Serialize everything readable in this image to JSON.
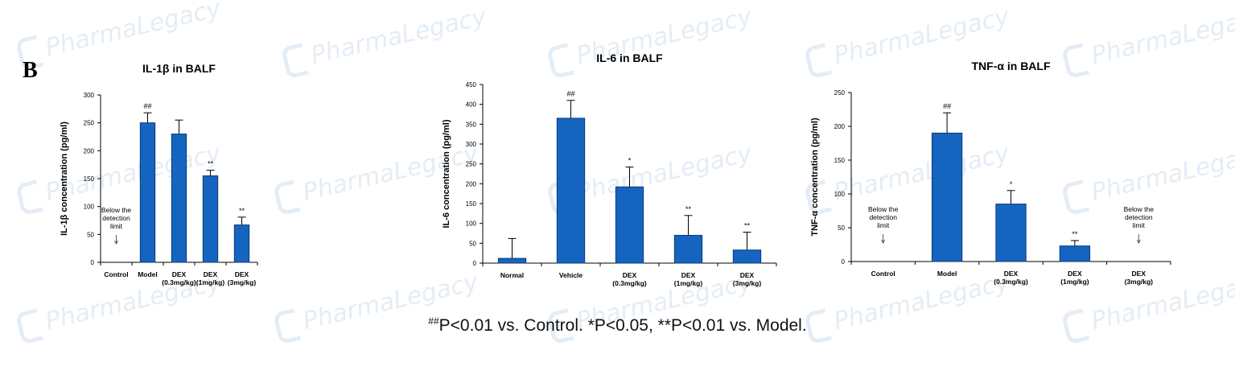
{
  "panel_label": "B",
  "watermark": "PharmaLegacy",
  "footnote": {
    "sup": "##",
    "text": "P<0.01 vs. Control.  *P<0.05, **P<0.01 vs. Model."
  },
  "colors": {
    "bar": "#1565c0",
    "bar_stroke": "#0b3a7a",
    "axis": "#000000"
  },
  "chart_data": [
    {
      "type": "bar",
      "title": "IL-1β in BALF",
      "ylabel": "IL-1β concentration (pg/ml)",
      "categories": [
        [
          "Control"
        ],
        [
          "Model"
        ],
        [
          "DEX",
          "(0.3mg/kg)"
        ],
        [
          "DEX",
          "(1mg/kg)"
        ],
        [
          "DEX",
          "(3mg/kg)"
        ]
      ],
      "values": [
        null,
        250,
        230,
        155,
        67
      ],
      "errors": [
        null,
        18,
        25,
        10,
        14
      ],
      "marks": [
        "",
        "##",
        "",
        "**",
        "**"
      ],
      "annotations": [
        {
          "index": 0,
          "lines": [
            "Below the",
            "detection",
            "limit"
          ]
        }
      ],
      "ylim": [
        0,
        300
      ],
      "yticks": [
        0,
        50,
        100,
        150,
        200,
        250,
        300
      ]
    },
    {
      "type": "bar",
      "title": "IL-6 in BALF",
      "ylabel": "IL-6 concentration (pg/ml)",
      "categories": [
        [
          "Normal"
        ],
        [
          "Vehicle"
        ],
        [
          "DEX",
          "(0.3mg/kg)"
        ],
        [
          "DEX",
          "(1mg/kg)"
        ],
        [
          "DEX",
          "(3mg/kg)"
        ]
      ],
      "values": [
        12,
        365,
        192,
        70,
        33
      ],
      "errors": [
        50,
        45,
        50,
        50,
        45
      ],
      "marks": [
        "",
        "##",
        "*",
        "**",
        "**"
      ],
      "annotations": [],
      "ylim": [
        0,
        450
      ],
      "yticks": [
        0,
        50,
        100,
        150,
        200,
        250,
        300,
        350,
        400,
        450
      ]
    },
    {
      "type": "bar",
      "title": "TNF-α in BALF",
      "ylabel": "TNF-α concentration (pg/ml)",
      "categories": [
        [
          "Control"
        ],
        [
          "Model"
        ],
        [
          "DEX",
          "(0.3mg/kg)"
        ],
        [
          "DEX",
          "(1mg/kg)"
        ],
        [
          "DEX",
          "(3mg/kg)"
        ]
      ],
      "values": [
        null,
        190,
        85,
        23,
        null
      ],
      "errors": [
        null,
        30,
        20,
        8,
        null
      ],
      "marks": [
        "",
        "##",
        "*",
        "**",
        ""
      ],
      "annotations": [
        {
          "index": 0,
          "lines": [
            "Below the",
            "detection",
            "limit"
          ]
        },
        {
          "index": 4,
          "lines": [
            "Below the",
            "detection",
            "limit"
          ]
        }
      ],
      "ylim": [
        0,
        250
      ],
      "yticks": [
        0,
        50,
        100,
        150,
        200,
        250
      ]
    }
  ]
}
